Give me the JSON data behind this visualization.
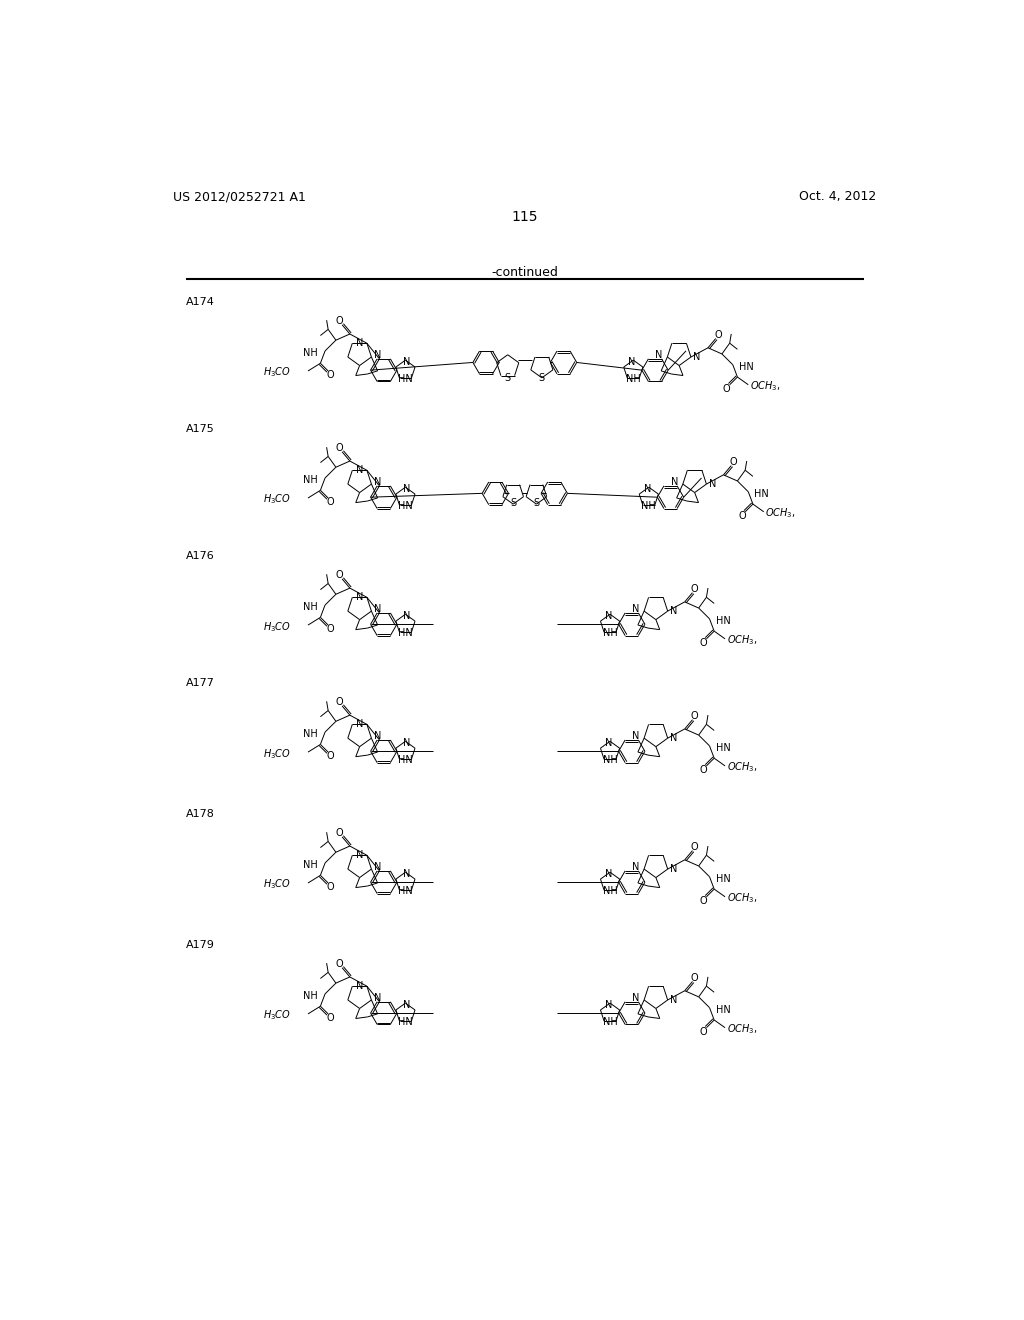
{
  "page_number": "115",
  "patent_number": "US 2012/0252721 A1",
  "patent_date": "Oct. 4, 2012",
  "continued_text": "-continued",
  "background_color": "#ffffff",
  "figsize": [
    10.24,
    13.2
  ],
  "dpi": 100,
  "compound_labels": [
    "A174",
    "A175",
    "A176",
    "A177",
    "A178",
    "A179"
  ],
  "y_starts": [
    175,
    340,
    505,
    670,
    840,
    1010
  ]
}
